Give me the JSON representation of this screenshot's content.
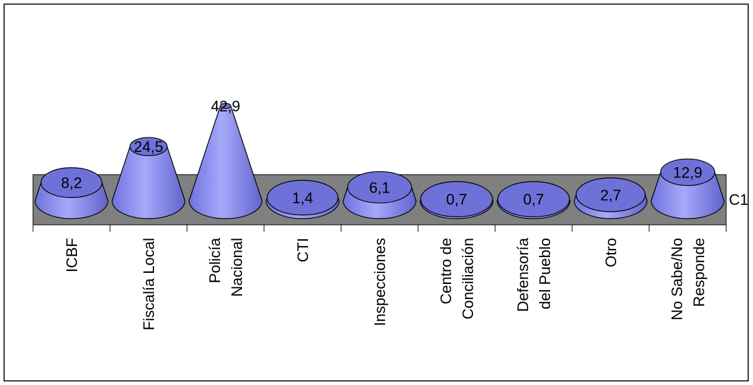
{
  "chart_data": {
    "type": "bar",
    "style": "3d-cone",
    "categories": [
      [
        "ICBF"
      ],
      [
        "Fiscalía Local"
      ],
      [
        "Policía",
        "Nacional"
      ],
      [
        "CTI"
      ],
      [
        "Inspecciones"
      ],
      [
        "Centro de",
        "Conciliación"
      ],
      [
        "Defensoría",
        "del Pueblo"
      ],
      [
        "Otro"
      ],
      [
        "No Sabe/No",
        "Responde"
      ]
    ],
    "values": [
      8.2,
      24.5,
      42.9,
      1.4,
      6.1,
      0.7,
      0.7,
      2.7,
      12.9
    ],
    "value_labels": [
      "8,2",
      "24,5",
      "42,9",
      "1,4",
      "6,1",
      "0,7",
      "0,7",
      "2,7",
      "12,9"
    ],
    "series": [
      {
        "name": "C1",
        "values": [
          8.2,
          24.5,
          42.9,
          1.4,
          6.1,
          0.7,
          0.7,
          2.7,
          12.9
        ]
      }
    ],
    "legend_label": "C1",
    "ylim": [
      0,
      50
    ],
    "colors": {
      "cone": "#8a8ef0",
      "cone_dark": "#5a5fc0",
      "cap": "#6e72d8",
      "floor": "#808080"
    }
  }
}
